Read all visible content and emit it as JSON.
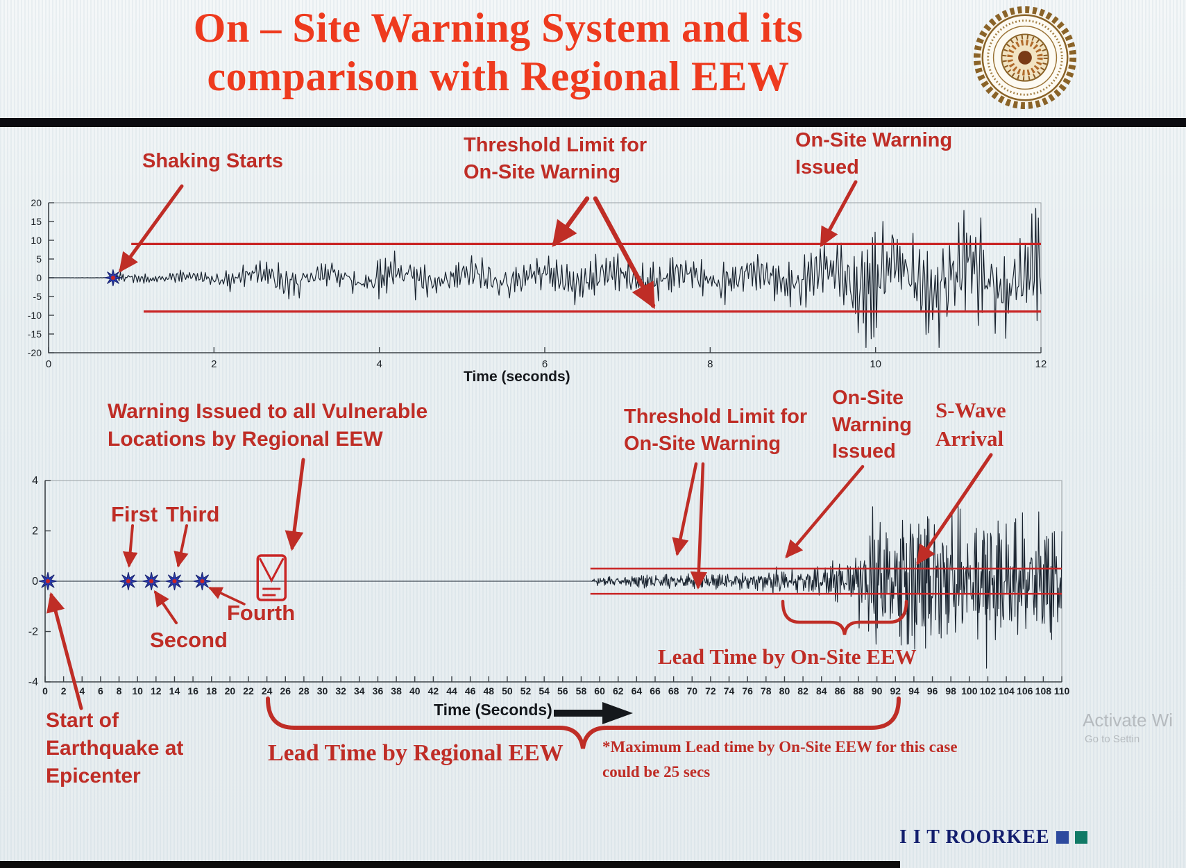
{
  "title": {
    "line1": "On – Site Warning System and its",
    "line2": "comparison with Regional EEW"
  },
  "footer": {
    "brand": "I I T ROORKEE"
  },
  "watermark": {
    "line1": "Activate Wi",
    "line2": "Go to Settin"
  },
  "colors": {
    "title_red": "#ee3a1e",
    "annotation_red": "#bf2d26",
    "threshold_red": "#c92525",
    "trace_dark": "#18222e",
    "star_blue": "#2b3aad",
    "brand_navy": "#141f6e",
    "brand_square_blue": "#2d4a9e",
    "brand_square_teal": "#117a66"
  },
  "chart_data": [
    {
      "type": "line",
      "name": "onsite-warning-seismogram",
      "title": "",
      "xlabel": "Time (seconds)",
      "ylabel": "",
      "xlim": [
        0,
        12
      ],
      "xticks": [
        0,
        2,
        4,
        6,
        8,
        10,
        12
      ],
      "ylim": [
        -20,
        20
      ],
      "yticks": [
        20,
        15,
        10,
        5,
        0,
        -5,
        -10,
        -15,
        -20
      ],
      "grid": false,
      "threshold": {
        "upper": 9,
        "lower": -9,
        "upper_start_x": 1.0,
        "lower_start_x": 1.15,
        "color": "#c92525"
      },
      "shaking_start_t": 0.78,
      "envelope": [
        [
          0,
          0
        ],
        [
          0.7,
          0.05
        ],
        [
          0.85,
          1.1
        ],
        [
          1.3,
          1.4
        ],
        [
          2.0,
          1.7
        ],
        [
          2.4,
          4.5
        ],
        [
          2.9,
          5.5
        ],
        [
          3.3,
          3.8
        ],
        [
          3.8,
          4.8
        ],
        [
          4.3,
          5.4
        ],
        [
          4.8,
          4.2
        ],
        [
          5.3,
          5.8
        ],
        [
          5.9,
          4.6
        ],
        [
          6.4,
          5.8
        ],
        [
          6.9,
          4.8
        ],
        [
          7.4,
          5.6
        ],
        [
          7.9,
          4.4
        ],
        [
          8.4,
          5.4
        ],
        [
          8.9,
          5.8
        ],
        [
          9.2,
          6.8
        ],
        [
          9.5,
          10
        ],
        [
          9.8,
          13
        ],
        [
          10.1,
          16.5
        ],
        [
          10.4,
          12
        ],
        [
          10.7,
          17.5
        ],
        [
          11.0,
          13
        ],
        [
          11.3,
          16.5
        ],
        [
          11.6,
          12.5
        ],
        [
          11.85,
          15.5
        ],
        [
          12,
          13
        ]
      ],
      "annotations": {
        "shaking_starts": "Shaking Starts",
        "threshold_label": "Threshold Limit for\nOn-Site Warning",
        "warning_issued": "On-Site Warning\nIssued"
      }
    },
    {
      "type": "line",
      "name": "regional-eew-comparison-seismogram",
      "title": "",
      "xlabel": "Time (Seconds)",
      "ylabel": "",
      "xlim": [
        0,
        110
      ],
      "xticks": [
        0,
        2,
        4,
        6,
        8,
        10,
        12,
        14,
        16,
        18,
        20,
        22,
        24,
        26,
        28,
        30,
        32,
        34,
        36,
        38,
        40,
        42,
        44,
        46,
        48,
        50,
        52,
        54,
        56,
        58,
        60,
        62,
        64,
        66,
        68,
        70,
        72,
        74,
        76,
        78,
        80,
        82,
        84,
        86,
        88,
        90,
        92,
        94,
        96,
        98,
        100,
        102,
        104,
        106,
        108,
        110
      ],
      "ylim": [
        -4,
        4
      ],
      "yticks": [
        4,
        2,
        0,
        -2,
        -4
      ],
      "grid": false,
      "threshold": {
        "upper": 0.5,
        "lower": -0.5,
        "upper_start_x": 59,
        "lower_start_x": 59,
        "color": "#c92525"
      },
      "epicenter_t": 0,
      "p_wave_detections": [
        {
          "label": "First",
          "t": 9
        },
        {
          "label": "Second",
          "t": 11.5
        },
        {
          "label": "Third",
          "t": 14
        },
        {
          "label": "Fourth",
          "t": 17
        }
      ],
      "regional_warning_t": 24.5,
      "onsite_warning_t": 80,
      "s_wave_arrival_t": 93,
      "envelope": [
        [
          0,
          0
        ],
        [
          59,
          0
        ],
        [
          59.5,
          0.12
        ],
        [
          61,
          0.2
        ],
        [
          64,
          0.24
        ],
        [
          67,
          0.32
        ],
        [
          70,
          0.3
        ],
        [
          73,
          0.34
        ],
        [
          76,
          0.32
        ],
        [
          79,
          0.48
        ],
        [
          81,
          0.55
        ],
        [
          83,
          0.6
        ],
        [
          85,
          0.75
        ],
        [
          87,
          0.95
        ],
        [
          88.5,
          1.7
        ],
        [
          90,
          3.0
        ],
        [
          91.5,
          2.3
        ],
        [
          93,
          3.2
        ],
        [
          94.5,
          2.6
        ],
        [
          96,
          3.1
        ],
        [
          97.5,
          2.4
        ],
        [
          99,
          2.9
        ],
        [
          100.5,
          2.3
        ],
        [
          102,
          2.8
        ],
        [
          103.5,
          2.2
        ],
        [
          105,
          2.6
        ],
        [
          106.5,
          2.0
        ],
        [
          108,
          2.4
        ],
        [
          110,
          2.1
        ]
      ],
      "annotations": {
        "warning_issued_regional": "Warning Issued to all Vulnerable\nLocations by Regional EEW",
        "threshold_label": "Threshold Limit for\nOn-Site Warning",
        "onsite_warning_issued": "On-Site\nWarning\nIssued",
        "s_wave_arrival": "S-Wave\nArrival",
        "start_epicenter": "Start of\nEarthquake at\nEpicenter",
        "lead_time_onsite": "Lead Time by On-Site EEW",
        "lead_time_regional": "Lead Time by Regional EEW",
        "max_lead_note": "*Maximum Lead time by On-Site EEW for this case\ncould be 25 secs"
      }
    }
  ]
}
